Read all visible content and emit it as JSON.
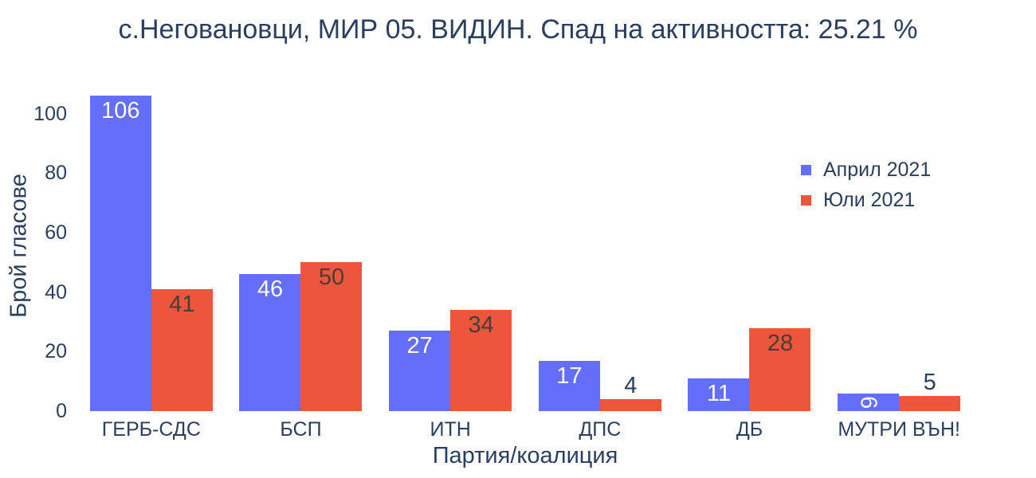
{
  "title": "с.Неговановци, МИР 05. ВИДИН. Спад на активността: 25.21 %",
  "colors": {
    "text": "#2a3f5f",
    "background": "#ffffff"
  },
  "chart_data": {
    "type": "bar",
    "title": "с.Неговановци, МИР 05. ВИДИН. Спад на активността: 25.21 %",
    "xlabel": "Партия/коалиция",
    "ylabel": "Брой гласове",
    "categories": [
      "ГЕРБ-СДС",
      "БСП",
      "ИТН",
      "ДПС",
      "ДБ",
      "МУТРИ ВЪН!"
    ],
    "series": [
      {
        "name": "Април 2021",
        "color": "#636efa",
        "inside_label_color": "#ffffff",
        "values": [
          106,
          46,
          27,
          17,
          11,
          6
        ],
        "label_positions": [
          "inside",
          "inside",
          "inside",
          "inside",
          "inside",
          "inside-rotated"
        ]
      },
      {
        "name": "Юли 2021",
        "color": "#ef553b",
        "inside_label_color": "#433f3a",
        "values": [
          41,
          50,
          34,
          4,
          28,
          5
        ],
        "label_positions": [
          "inside",
          "inside",
          "inside",
          "outside",
          "inside",
          "outside"
        ]
      }
    ],
    "yticks": [
      0,
      20,
      40,
      60,
      80,
      100
    ],
    "ylim": [
      0,
      112
    ],
    "grid": false,
    "legend_position": "inside-top-right",
    "outside_label_color": "#2a3f5f"
  }
}
